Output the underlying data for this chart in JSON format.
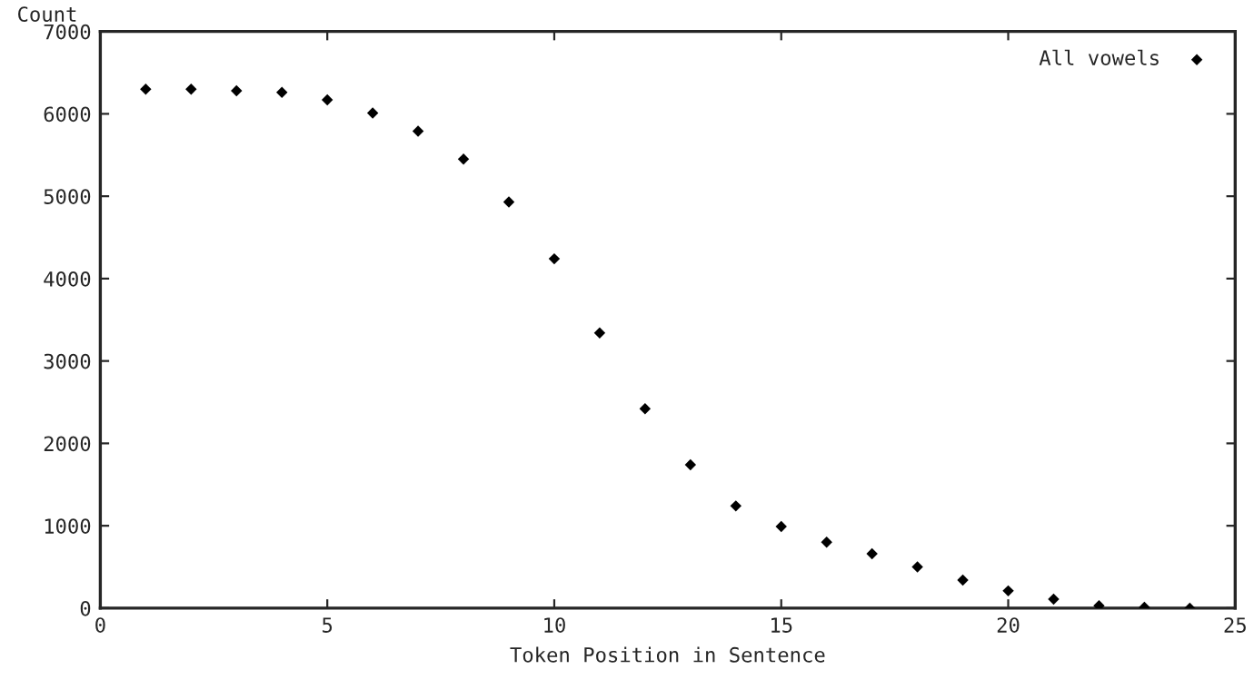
{
  "chart_data": {
    "type": "scatter",
    "xlabel": "Token Position in Sentence",
    "ylabel": "Count",
    "xlim": [
      0,
      25
    ],
    "xticks": [
      0,
      5,
      10,
      15,
      20,
      25
    ],
    "ylim": [
      0,
      7000
    ],
    "yticks": [
      0,
      1000,
      2000,
      3000,
      4000,
      5000,
      6000,
      7000
    ],
    "x": [
      1,
      2,
      3,
      4,
      5,
      6,
      7,
      8,
      9,
      10,
      11,
      12,
      13,
      14,
      15,
      16,
      17,
      18,
      19,
      20,
      21,
      22,
      23,
      24
    ],
    "series": [
      {
        "name": "All vowels",
        "color": "#000000",
        "values": [
          6300,
          6300,
          6280,
          6260,
          6170,
          6010,
          5790,
          5450,
          4930,
          4240,
          3340,
          2420,
          1740,
          1240,
          990,
          800,
          660,
          500,
          340,
          210,
          110,
          30,
          10,
          0
        ]
      }
    ],
    "marker": "diamond",
    "legend": "top right",
    "grid": false
  }
}
